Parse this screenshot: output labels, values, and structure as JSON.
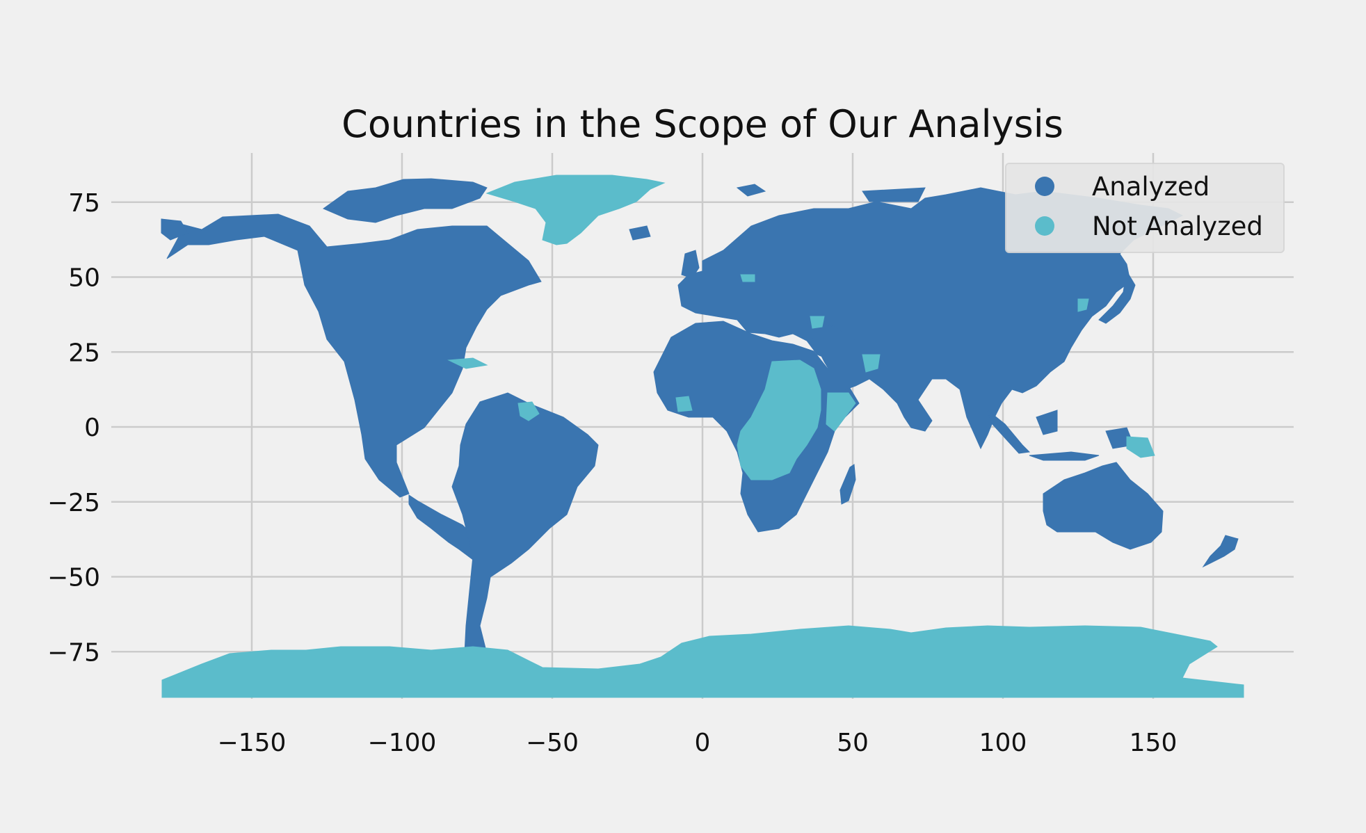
{
  "colors": {
    "background": "#f0f0f0",
    "analyzed": "#3a75b0",
    "not_analyzed": "#5bbccb",
    "grid": "#cbcbcb",
    "legend_bg": "#e6e6e6"
  },
  "chart_data": {
    "type": "choropleth",
    "title": "Countries in the Scope of Our Analysis",
    "xlabel": "",
    "ylabel": "",
    "xlim": [
      -180,
      180
    ],
    "ylim": [
      -90,
      84
    ],
    "x_ticks": [
      -150,
      -100,
      -50,
      0,
      50,
      100,
      150
    ],
    "y_ticks": [
      75,
      50,
      25,
      0,
      -25,
      -50,
      -75
    ],
    "x_tick_labels": [
      "−150",
      "−100",
      "−50",
      "0",
      "50",
      "100",
      "150"
    ],
    "y_tick_labels": [
      "75",
      "50",
      "25",
      "0",
      "−25",
      "−50",
      "−75"
    ],
    "grid": true,
    "legend": {
      "placement": "top-right",
      "entries": [
        {
          "label": "Analyzed",
          "color": "#3a75b0"
        },
        {
          "label": "Not Analyzed",
          "color": "#5bbccb"
        }
      ]
    },
    "categories": [
      "Analyzed",
      "Not Analyzed"
    ],
    "not_analyzed_regions": [
      "Greenland",
      "Antarctica",
      "Central Africa",
      "Sudan",
      "Somalia",
      "Guyana",
      "Cuba",
      "Papua New Guinea",
      "North Korea",
      "Syria",
      "Yemen"
    ]
  }
}
